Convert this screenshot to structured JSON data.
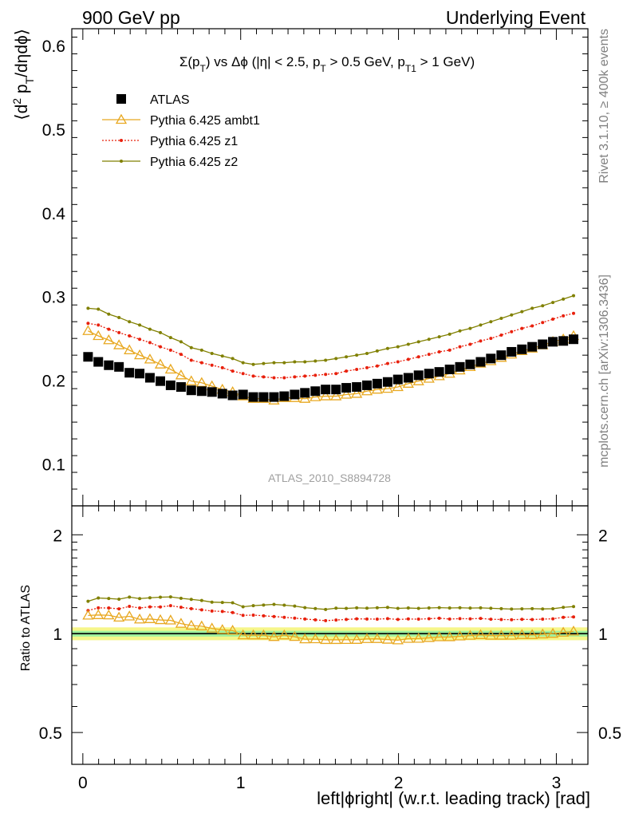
{
  "header": {
    "left": "900 GeV pp",
    "right": "Underlying Event"
  },
  "side_labels": {
    "rivet": "Rivet 3.1.10, ≥ 400k events",
    "mcplots": "mcplots.cern.ch [arXiv:1306.3436]"
  },
  "watermark": "ATLAS_2010_S8894728",
  "chart_data": [
    {
      "type": "scatter",
      "title": "Σ(pT) vs Δφ (|η| < 2.5, pT > 0.5 GeV, pT1 > 1 GeV)",
      "ylabel": "⟨d² pT/dηdφ⟩",
      "xlim": [
        -0.07,
        3.2
      ],
      "ylim": [
        0.05,
        0.62
      ],
      "yticks": [
        0.1,
        0.2,
        0.3,
        0.4,
        0.5,
        0.6
      ],
      "legend_placement": "top-left",
      "x": [
        0.033,
        0.098,
        0.164,
        0.229,
        0.295,
        0.36,
        0.425,
        0.491,
        0.556,
        0.622,
        0.687,
        0.753,
        0.818,
        0.884,
        0.949,
        1.015,
        1.08,
        1.145,
        1.211,
        1.276,
        1.342,
        1.407,
        1.473,
        1.538,
        1.604,
        1.669,
        1.735,
        1.8,
        1.865,
        1.931,
        1.996,
        2.062,
        2.127,
        2.193,
        2.258,
        2.324,
        2.389,
        2.454,
        2.52,
        2.585,
        2.651,
        2.716,
        2.782,
        2.847,
        2.913,
        2.978,
        3.044,
        3.109
      ],
      "series": [
        {
          "name": "ATLAS",
          "color": "#000000",
          "marker": "square",
          "values": [
            0.228,
            0.222,
            0.218,
            0.216,
            0.209,
            0.208,
            0.203,
            0.199,
            0.194,
            0.192,
            0.188,
            0.187,
            0.186,
            0.184,
            0.182,
            0.183,
            0.18,
            0.18,
            0.18,
            0.181,
            0.183,
            0.185,
            0.187,
            0.189,
            0.189,
            0.191,
            0.192,
            0.194,
            0.196,
            0.198,
            0.201,
            0.203,
            0.206,
            0.208,
            0.21,
            0.213,
            0.216,
            0.219,
            0.222,
            0.226,
            0.23,
            0.234,
            0.237,
            0.24,
            0.243,
            0.246,
            0.247,
            0.249
          ]
        },
        {
          "name": "Pythia 6.425 ambt1",
          "color": "#e8a820",
          "marker": "triangle",
          "values": [
            0.259,
            0.253,
            0.248,
            0.242,
            0.236,
            0.23,
            0.225,
            0.219,
            0.213,
            0.206,
            0.199,
            0.197,
            0.193,
            0.189,
            0.186,
            0.181,
            0.178,
            0.178,
            0.176,
            0.179,
            0.179,
            0.178,
            0.18,
            0.181,
            0.181,
            0.183,
            0.184,
            0.187,
            0.189,
            0.19,
            0.192,
            0.196,
            0.199,
            0.202,
            0.205,
            0.208,
            0.212,
            0.216,
            0.22,
            0.223,
            0.227,
            0.231,
            0.235,
            0.238,
            0.242,
            0.246,
            0.249,
            0.253
          ]
        },
        {
          "name": "Pythia 6.425 z1",
          "color": "#e8200c",
          "marker": "dot",
          "dash": "dotted",
          "values": [
            0.268,
            0.266,
            0.261,
            0.257,
            0.253,
            0.249,
            0.245,
            0.24,
            0.236,
            0.231,
            0.224,
            0.221,
            0.218,
            0.215,
            0.211,
            0.208,
            0.205,
            0.204,
            0.203,
            0.203,
            0.204,
            0.205,
            0.206,
            0.207,
            0.208,
            0.211,
            0.213,
            0.215,
            0.217,
            0.22,
            0.222,
            0.225,
            0.228,
            0.231,
            0.234,
            0.236,
            0.24,
            0.243,
            0.247,
            0.25,
            0.254,
            0.258,
            0.262,
            0.265,
            0.269,
            0.273,
            0.277,
            0.28
          ]
        },
        {
          "name": "Pythia 6.425 z2",
          "color": "#808000",
          "marker": "dot",
          "values": [
            0.286,
            0.285,
            0.279,
            0.275,
            0.27,
            0.266,
            0.261,
            0.257,
            0.251,
            0.246,
            0.239,
            0.236,
            0.232,
            0.229,
            0.226,
            0.221,
            0.219,
            0.22,
            0.221,
            0.221,
            0.222,
            0.222,
            0.223,
            0.224,
            0.226,
            0.228,
            0.23,
            0.232,
            0.235,
            0.238,
            0.24,
            0.243,
            0.246,
            0.249,
            0.252,
            0.255,
            0.259,
            0.262,
            0.266,
            0.27,
            0.274,
            0.278,
            0.282,
            0.286,
            0.289,
            0.293,
            0.297,
            0.301
          ]
        }
      ]
    },
    {
      "type": "line",
      "ylabel": "Ratio to ATLAS",
      "xlabel": "left|ϕright| (w.r.t. leading track) [rad]",
      "xlim": [
        -0.07,
        3.2
      ],
      "ylim": [
        0.4,
        2.45
      ],
      "yscale": "log",
      "yticks": [
        0.5,
        1,
        2
      ],
      "xticks": [
        0,
        1,
        2,
        3
      ],
      "reference": 1.0,
      "band_inner": [
        0.98,
        1.02
      ],
      "band_outer": [
        0.955,
        1.045
      ],
      "series_ref": "ratio of each Pythia series to ATLAS"
    }
  ]
}
